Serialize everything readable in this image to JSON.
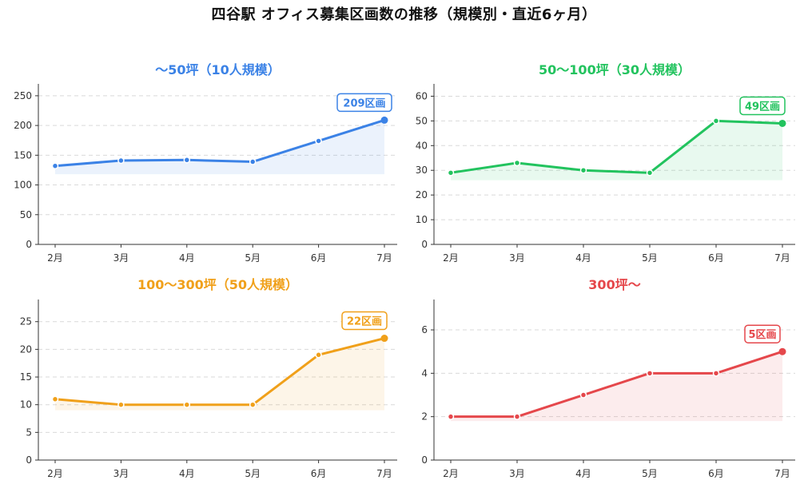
{
  "title": "四谷駅 オフィス募集区画数の推移（規模別・直近6ヶ月）",
  "chart_data": [
    {
      "type": "line",
      "title": "〜50坪（10人規模）",
      "color": "#3b82e6",
      "categories": [
        "2月",
        "3月",
        "4月",
        "5月",
        "6月",
        "7月"
      ],
      "series": [
        {
          "values": [
            132,
            141,
            142,
            139,
            174,
            209
          ]
        }
      ],
      "ylim": [
        0,
        270
      ],
      "yticks": [
        0,
        50,
        100,
        150,
        200,
        250
      ],
      "area_base": 118,
      "callout": "209区画",
      "grid": true
    },
    {
      "type": "line",
      "title": "50〜100坪（30人規模）",
      "color": "#22c35e",
      "categories": [
        "2月",
        "3月",
        "4月",
        "5月",
        "6月",
        "7月"
      ],
      "series": [
        {
          "values": [
            29,
            33,
            30,
            29,
            50,
            49
          ]
        }
      ],
      "ylim": [
        0,
        65
      ],
      "yticks": [
        0,
        10,
        20,
        30,
        40,
        50,
        60
      ],
      "area_base": 26,
      "callout": "49区画",
      "grid": true
    },
    {
      "type": "line",
      "title": "100〜300坪（50人規模）",
      "color": "#f0a01a",
      "categories": [
        "2月",
        "3月",
        "4月",
        "5月",
        "6月",
        "7月"
      ],
      "series": [
        {
          "values": [
            11,
            10,
            10,
            10,
            19,
            22
          ]
        }
      ],
      "ylim": [
        0,
        29
      ],
      "yticks": [
        0,
        5,
        10,
        15,
        20,
        25
      ],
      "area_base": 9,
      "callout": "22区画",
      "grid": true
    },
    {
      "type": "line",
      "title": "300坪〜",
      "color": "#e5474b",
      "categories": [
        "2月",
        "3月",
        "4月",
        "5月",
        "6月",
        "7月"
      ],
      "series": [
        {
          "values": [
            2,
            2,
            3,
            4,
            4,
            5
          ]
        }
      ],
      "ylim": [
        0,
        7.4
      ],
      "yticks": [
        0,
        2,
        4,
        6
      ],
      "area_base": 1.8,
      "callout": "5区画",
      "grid": true
    }
  ]
}
